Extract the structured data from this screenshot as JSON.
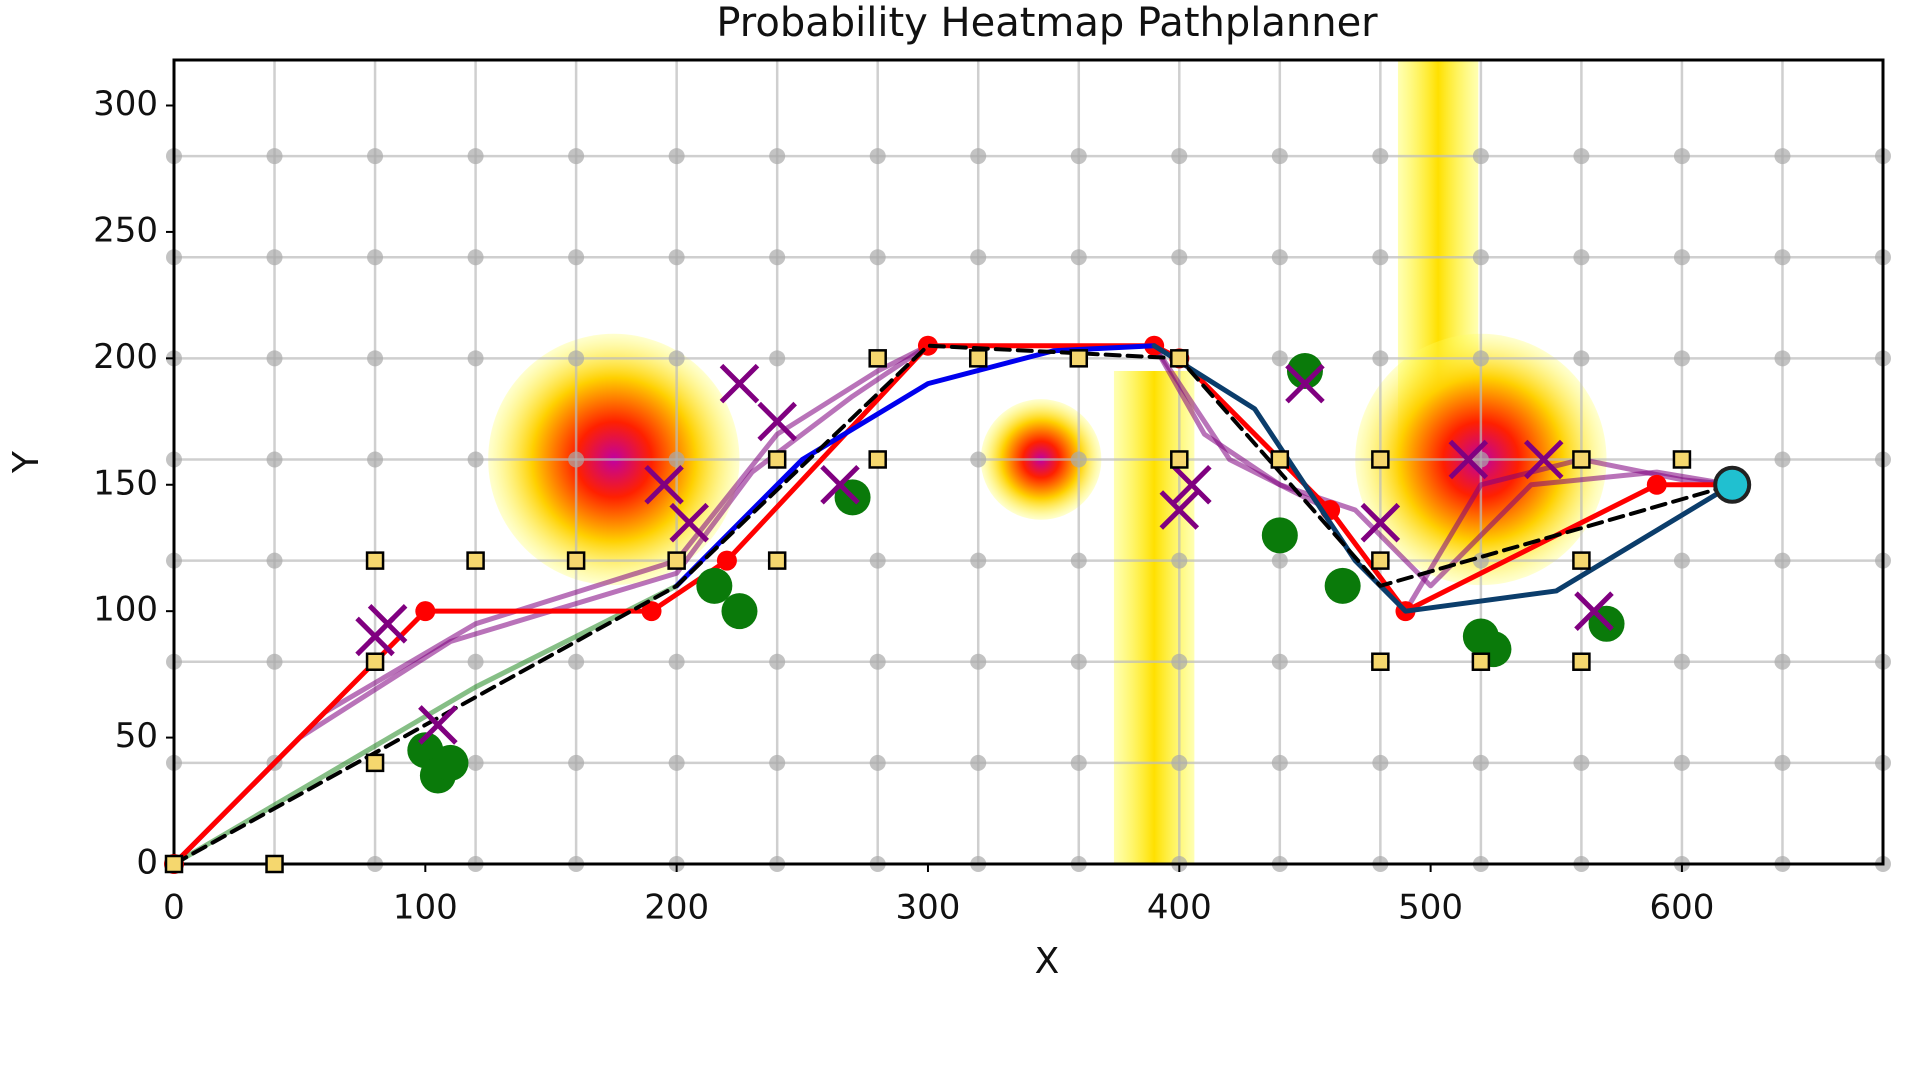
{
  "chart_data": {
    "type": "line",
    "title": "Probability Heatmap Pathplanner",
    "xlabel": "X",
    "ylabel": "Y",
    "xlim": [
      0,
      680
    ],
    "ylim": [
      0,
      318
    ],
    "xticks": [
      0,
      100,
      200,
      300,
      400,
      500,
      600
    ],
    "yticks": [
      0,
      50,
      100,
      150,
      200,
      250,
      300
    ],
    "grid": true,
    "grid_step": 40,
    "heat_sources": [
      {
        "x": 175,
        "y": 160,
        "radius": 50
      },
      {
        "x": 345,
        "y": 160,
        "radius": 24
      },
      {
        "x": 520,
        "y": 160,
        "radius": 50
      }
    ],
    "heat_bands": [
      {
        "x": 390,
        "y0": 0,
        "y1": 195,
        "width": 16
      },
      {
        "x": 503,
        "y0": 150,
        "y1": 318,
        "width": 16
      }
    ],
    "waypoints": {
      "color": "#f5d76e",
      "x": [
        0,
        40,
        80,
        80,
        80,
        120,
        160,
        200,
        240,
        240,
        280,
        280,
        320,
        360,
        400,
        400,
        440,
        480,
        480,
        480,
        520,
        560,
        560,
        560,
        600
      ],
      "y": [
        0,
        0,
        40,
        80,
        120,
        120,
        120,
        120,
        120,
        160,
        160,
        200,
        200,
        200,
        200,
        160,
        160,
        160,
        120,
        80,
        80,
        80,
        120,
        160,
        160
      ]
    },
    "series": [
      {
        "style": "candidate",
        "color": "#800080",
        "x": [
          0,
          60,
          120,
          200,
          240,
          280,
          300
        ],
        "y": [
          0,
          60,
          95,
          120,
          170,
          195,
          205
        ]
      },
      {
        "style": "candidate",
        "color": "#800080",
        "x": [
          0,
          50,
          110,
          200,
          230,
          270,
          300
        ],
        "y": [
          0,
          50,
          88,
          115,
          155,
          185,
          205
        ]
      },
      {
        "style": "candidate",
        "color": "#800080",
        "x": [
          390,
          410,
          440,
          470,
          500,
          540,
          590,
          620
        ],
        "y": [
          205,
          170,
          150,
          140,
          110,
          150,
          155,
          150
        ]
      },
      {
        "style": "candidate",
        "color": "#800080",
        "x": [
          390,
          420,
          460,
          490,
          520,
          560,
          600,
          620
        ],
        "y": [
          205,
          160,
          140,
          100,
          150,
          160,
          152,
          150
        ]
      },
      {
        "style": "candidate",
        "color": "#228b22",
        "x": [
          0,
          60,
          120,
          200
        ],
        "y": [
          0,
          35,
          70,
          110
        ]
      },
      {
        "style": "solid",
        "color": "#ff0000",
        "x": [
          0,
          100,
          190,
          220,
          300,
          390,
          400,
          460,
          490,
          590,
          620
        ],
        "y": [
          0,
          100,
          100,
          120,
          205,
          205,
          200,
          140,
          100,
          150,
          150
        ]
      },
      {
        "style": "solid",
        "color": "#0000ee",
        "x": [
          200,
          250,
          300,
          350,
          390
        ],
        "y": [
          110,
          160,
          190,
          203,
          205
        ]
      },
      {
        "style": "solid",
        "color": "#0b3d6b",
        "x": [
          390,
          430,
          470,
          490,
          550,
          620
        ],
        "y": [
          205,
          180,
          120,
          100,
          108,
          150
        ]
      },
      {
        "style": "dashed",
        "color": "#000000",
        "x": [
          0,
          200,
          300,
          400,
          480,
          620
        ],
        "y": [
          0,
          110,
          205,
          200,
          110,
          150
        ]
      }
    ],
    "obstacles": {
      "color": "#0a7a0a",
      "x": [
        100,
        105,
        110,
        215,
        225,
        270,
        450,
        440,
        465,
        520,
        525,
        570
      ],
      "y": [
        45,
        35,
        40,
        110,
        100,
        145,
        195,
        130,
        110,
        90,
        85,
        95
      ]
    },
    "crosses": {
      "color": "#800080",
      "x": [
        80,
        85,
        105,
        195,
        205,
        225,
        240,
        265,
        400,
        405,
        450,
        480,
        515,
        545,
        565
      ],
      "y": [
        90,
        95,
        55,
        150,
        135,
        190,
        175,
        150,
        140,
        150,
        190,
        135,
        160,
        160,
        100
      ]
    },
    "start": {
      "color": "#20c0d0",
      "x": 620,
      "y": 150
    }
  }
}
